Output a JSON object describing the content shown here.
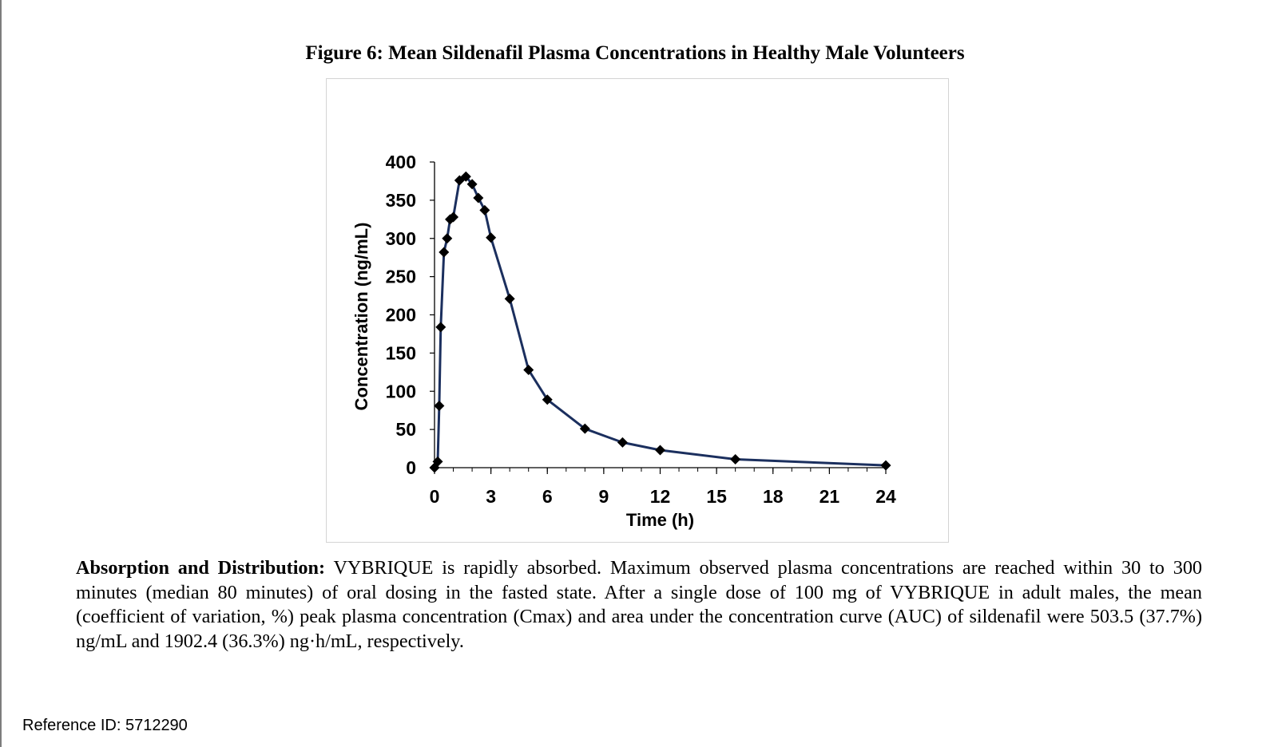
{
  "figure": {
    "title": "Figure 6: Mean Sildenafil Plasma Concentrations in Healthy Male Volunteers"
  },
  "chart_data": {
    "type": "line",
    "title": "Figure 6: Mean Sildenafil Plasma Concentrations in Healthy Male Volunteers",
    "xlabel": "Time (h)",
    "ylabel": "Concentration (ng/mL)",
    "xlim": [
      0,
      24
    ],
    "ylim": [
      0,
      400
    ],
    "xticks": [
      0,
      3,
      6,
      9,
      12,
      15,
      18,
      21,
      24
    ],
    "yticks": [
      0,
      50,
      100,
      150,
      200,
      250,
      300,
      350,
      400
    ],
    "x_minor_step": 1,
    "marker": "diamond",
    "line_color": "#1b2f5e",
    "marker_color": "#000000",
    "grid": false,
    "legend": "none",
    "series": [
      {
        "name": "Mean sildenafil plasma concentration",
        "x": [
          0,
          0.17,
          0.25,
          0.33,
          0.5,
          0.67,
          0.83,
          1.0,
          1.33,
          1.67,
          2.0,
          2.33,
          2.67,
          3.0,
          4.0,
          5.0,
          6.0,
          8.0,
          10.0,
          12.0,
          16.0,
          24.0
        ],
        "y": [
          0,
          8,
          81,
          184,
          282,
          300,
          325,
          328,
          376,
          381,
          371,
          353,
          337,
          301,
          221,
          128,
          89,
          51,
          33,
          23,
          11,
          3
        ]
      }
    ]
  },
  "paragraph": {
    "lead": "Absorption and Distribution:",
    "text": " VYBRIQUE is rapidly absorbed. Maximum observed plasma concentrations are reached within 30 to 300 minutes (median 80 minutes) of oral dosing in the fasted state. After a single dose of 100 mg of VYBRIQUE in adult males, the mean (coefficient of variation, %) peak plasma concentration (Cmax) and area under the concentration curve (AUC) of sildenafil were 503.5 (37.7%) ng/mL and 1902.4 (36.3%) ng·h/mL, respectively."
  },
  "footer": {
    "reference": "Reference ID: 5712290"
  }
}
